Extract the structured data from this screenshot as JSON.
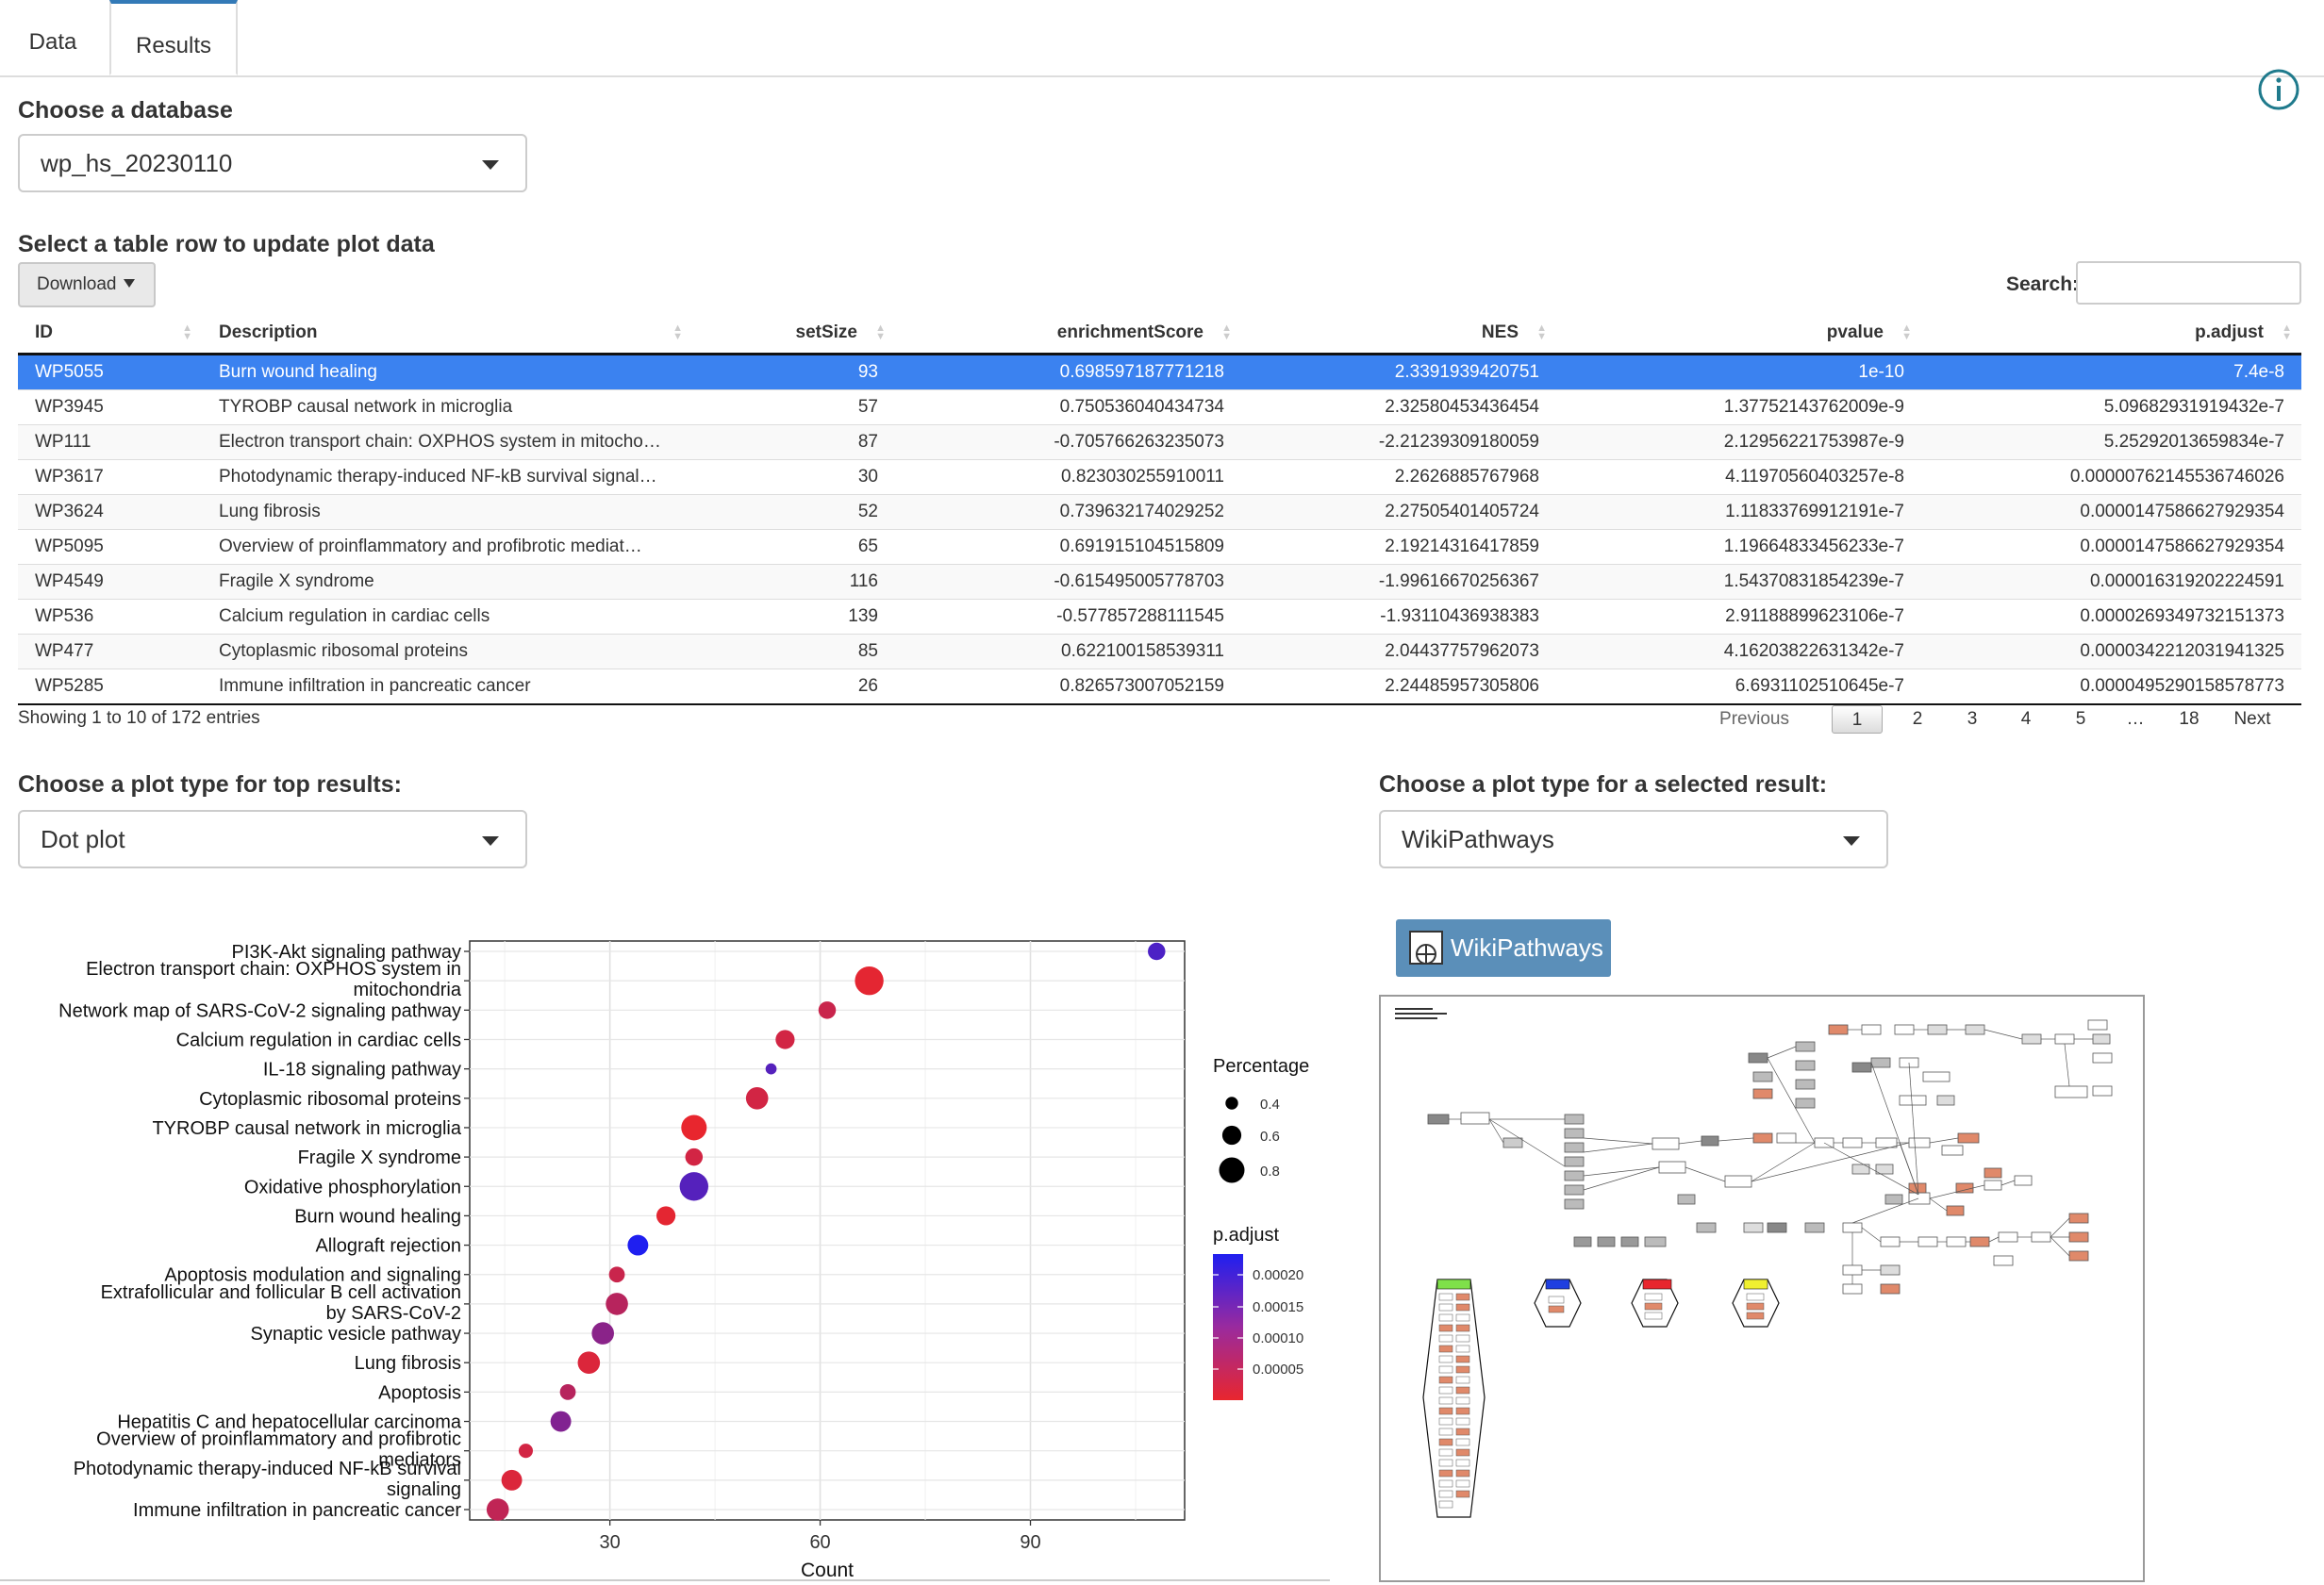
{
  "tabs": [
    {
      "label": "Data"
    },
    {
      "label": "Results"
    }
  ],
  "database": {
    "label": "Choose a database",
    "selected": "wp_hs_20230110"
  },
  "table_section": {
    "label": "Select a table row to update plot data",
    "download_label": "Download",
    "search_label": "Search:",
    "search_value": "",
    "columns": [
      "ID",
      "Description",
      "setSize",
      "enrichmentScore",
      "NES",
      "pvalue",
      "p.adjust"
    ],
    "rows": [
      [
        "WP5055",
        "Burn wound healing",
        "93",
        "0.698597187771218",
        "2.3391939420751",
        "1e-10",
        "7.4e-8"
      ],
      [
        "WP3945",
        "TYROBP causal network in microglia",
        "57",
        "0.750536040434734",
        "2.32580453436454",
        "1.37752143762009e-9",
        "5.09682931919432e-7"
      ],
      [
        "WP111",
        "Electron transport chain: OXPHOS system in mitocho…",
        "87",
        "-0.705766263235073",
        "-2.21239309180059",
        "2.12956221753987e-9",
        "5.25292013659834e-7"
      ],
      [
        "WP3617",
        "Photodynamic therapy-induced NF-kB survival signal…",
        "30",
        "0.823030255910011",
        "2.2626885767968",
        "4.11970560403257e-8",
        "0.0000076214553674602​6"
      ],
      [
        "WP3624",
        "Lung fibrosis",
        "52",
        "0.739632174029252",
        "2.27505401405724",
        "1.11833769912191e-7",
        "0.000014758662792935​4"
      ],
      [
        "WP5095",
        "Overview of proinflammatory and profibrotic mediat…",
        "65",
        "0.691915104515809",
        "2.19214316417859",
        "1.19664833456233e-7",
        "0.000014758662792935​4"
      ],
      [
        "WP4549",
        "Fragile X syndrome",
        "116",
        "-0.615495005778703",
        "-1.99616670256367",
        "1.54370831854239e-7",
        "0.000016319202224591"
      ],
      [
        "WP536",
        "Calcium regulation in cardiac cells",
        "139",
        "-0.577857288111545",
        "-1.93110436938383",
        "2.91188899623106e-7",
        "0.000026934973215137​3"
      ],
      [
        "WP477",
        "Cytoplasmic ribosomal proteins",
        "85",
        "0.622100158539311",
        "2.04437757962073",
        "4.16203822631342e-7",
        "0.000034221203194132​5"
      ],
      [
        "WP5285",
        "Immune infiltration in pancreatic cancer",
        "26",
        "0.826573007052159",
        "2.24485957305806",
        "6.6931102510645e-7",
        "0.000049529015857877​3"
      ]
    ],
    "info": "Showing 1 to 10 of 172 entries",
    "pagination": [
      "Previous",
      "1",
      "2",
      "3",
      "4",
      "5",
      "…",
      "18",
      "Next"
    ]
  },
  "top_plot": {
    "label": "Choose a plot type for top results:",
    "selected": "Dot plot"
  },
  "selected_plot": {
    "label": "Choose a plot type for a selected result:",
    "selected": "WikiPathways",
    "button_label": "WikiPathways"
  },
  "colors": {
    "accent": "#337ab7",
    "selected_row": "#3b82f0",
    "low_p": "#e8262e",
    "high_p": "#1f1ff0",
    "wp_button": "#5b8fb9",
    "gene_up": "#e0896a"
  },
  "chart_data": {
    "type": "scatter",
    "title": "",
    "xlabel": "Count",
    "ylabel": "",
    "xlim": [
      10,
      112
    ],
    "xticks": [
      30,
      60,
      90
    ],
    "grid": true,
    "categories": [
      "PI3K-Akt signaling pathway",
      "Electron transport chain: OXPHOS system in\nmitochondria",
      "Network map of SARS-CoV-2 signaling pathway",
      "Calcium regulation in cardiac cells",
      "IL-18 signaling pathway",
      "Cytoplasmic ribosomal proteins",
      "TYROBP causal network in microglia",
      "Fragile X syndrome",
      "Oxidative phosphorylation",
      "Burn wound healing",
      "Allograft rejection",
      "Apoptosis modulation and signaling",
      "Extrafollicular and follicular B cell activation\nby SARS-CoV-2",
      "Synaptic vesicle pathway",
      "Lung fibrosis",
      "Apoptosis",
      "Hepatitis C and hepatocellular carcinoma",
      "Overview of proinflammatory and profibrotic\nmediators",
      "Photodynamic therapy-induced NF-kB survival\nsignaling",
      "Immune infiltration in pancreatic cancer"
    ],
    "series": [
      {
        "x": [
          108,
          67,
          61,
          55,
          53,
          51,
          42,
          42,
          42,
          38,
          34,
          31,
          31,
          29,
          27,
          24,
          23,
          18,
          16,
          14
        ],
        "percentage": [
          0.55,
          0.9,
          0.55,
          0.6,
          0.35,
          0.7,
          0.8,
          0.55,
          0.9,
          0.6,
          0.65,
          0.5,
          0.7,
          0.7,
          0.7,
          0.5,
          0.65,
          0.45,
          0.65,
          0.7
        ],
        "p_adjust": [
          0.00018,
          1e-05,
          4e-05,
          3e-05,
          0.00017,
          3e-05,
          5e-06,
          3e-05,
          0.00017,
          1e-05,
          0.00023,
          4e-05,
          6e-05,
          0.00011,
          2e-05,
          6e-05,
          0.00012,
          3e-05,
          2e-05,
          5e-05
        ]
      }
    ],
    "legend": {
      "size_title": "Percentage",
      "size_labels": [
        "0.4",
        "0.6",
        "0.8"
      ],
      "color_title": "p.adjust",
      "color_labels": [
        "0.00020",
        "0.00015",
        "0.00010",
        "0.00005"
      ],
      "placement": "right"
    }
  }
}
